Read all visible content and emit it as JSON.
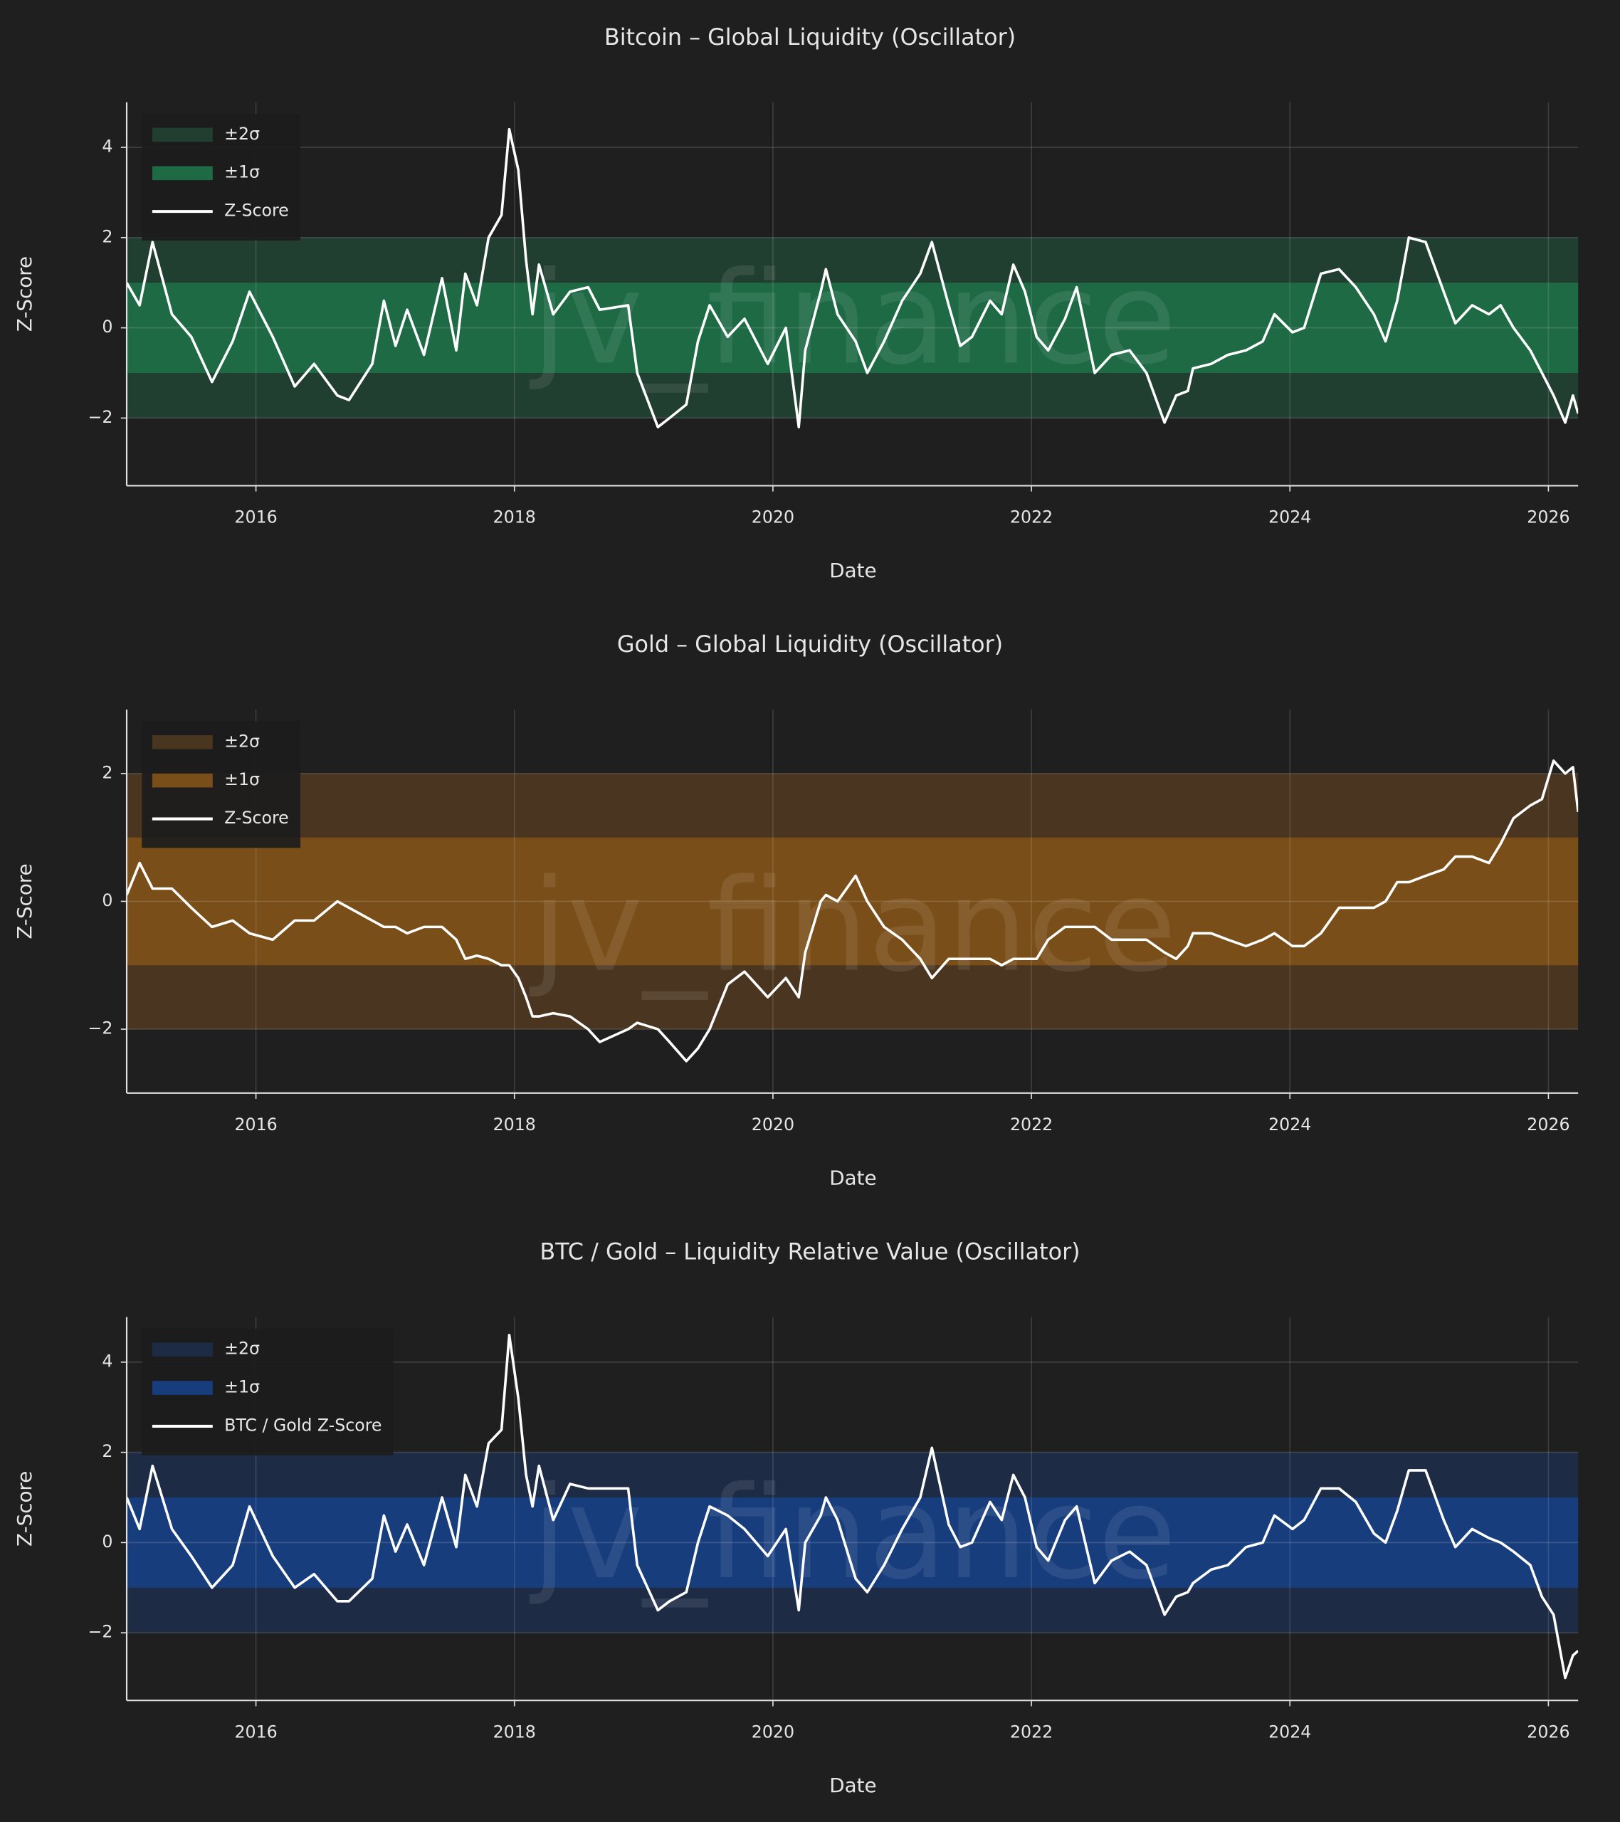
{
  "chart_data": [
    {
      "type": "line",
      "title": "Bitcoin – Global Liquidity (Oscillator)",
      "xlabel": "Date",
      "ylabel": "Z-Score",
      "watermark": "jv_finance",
      "x": [
        2015.0,
        2015.1,
        2015.2,
        2015.35,
        2015.5,
        2015.66,
        2015.82,
        2015.95,
        2016.13,
        2016.3,
        2016.45,
        2016.63,
        2016.72,
        2016.9,
        2016.99,
        2017.08,
        2017.17,
        2017.3,
        2017.44,
        2017.55,
        2017.62,
        2017.71,
        2017.8,
        2017.9,
        2017.96,
        2018.03,
        2018.09,
        2018.14,
        2018.19,
        2018.3,
        2018.43,
        2018.57,
        2018.66,
        2018.88,
        2018.95,
        2019.11,
        2019.2,
        2019.33,
        2019.42,
        2019.51,
        2019.65,
        2019.78,
        2019.96,
        2020.1,
        2020.2,
        2020.25,
        2020.37,
        2020.41,
        2020.5,
        2020.64,
        2020.73,
        2020.86,
        2021.0,
        2021.14,
        2021.23,
        2021.36,
        2021.45,
        2021.54,
        2021.68,
        2021.77,
        2021.86,
        2021.95,
        2022.04,
        2022.13,
        2022.26,
        2022.35,
        2022.49,
        2022.62,
        2022.76,
        2022.89,
        2023.03,
        2023.12,
        2023.21,
        2023.25,
        2023.39,
        2023.52,
        2023.66,
        2023.79,
        2023.88,
        2024.02,
        2024.11,
        2024.24,
        2024.38,
        2024.51,
        2024.65,
        2024.74,
        2024.83,
        2024.92,
        2025.05,
        2025.19,
        2025.28,
        2025.41,
        2025.54,
        2025.63,
        2025.73,
        2025.86,
        2025.95,
        2026.04,
        2026.13,
        2026.19,
        2026.23
      ],
      "xlim": [
        2015.0,
        2026.23
      ],
      "xticks": [
        2016,
        2018,
        2020,
        2022,
        2024,
        2026
      ],
      "ylim": [
        -3.5,
        5
      ],
      "yticks": [
        {
          "value": -2,
          "label": "−2"
        },
        0,
        2,
        4
      ],
      "bands": [
        {
          "name": "±2σ",
          "color": "#213f31",
          "range": [
            -2,
            2
          ]
        },
        {
          "name": "±1σ",
          "color": "#1d6a45",
          "range": [
            -1,
            1
          ]
        }
      ],
      "series": [
        {
          "name": "Z-Score",
          "color": "#ffffff",
          "values": [
            1.0,
            0.5,
            1.9,
            0.3,
            -0.2,
            -1.2,
            -0.3,
            0.8,
            -0.2,
            -1.3,
            -0.8,
            -1.5,
            -1.6,
            -0.8,
            0.6,
            -0.4,
            0.4,
            -0.6,
            1.1,
            -0.5,
            1.2,
            0.5,
            2.0,
            2.5,
            4.4,
            3.5,
            1.5,
            0.3,
            1.4,
            0.3,
            0.8,
            0.9,
            0.4,
            0.5,
            -1.0,
            -2.2,
            -2.0,
            -1.7,
            -0.3,
            0.5,
            -0.2,
            0.2,
            -0.8,
            0.0,
            -2.2,
            -0.5,
            0.8,
            1.3,
            0.3,
            -0.3,
            -1.0,
            -0.3,
            0.6,
            1.2,
            1.9,
            0.5,
            -0.4,
            -0.2,
            0.6,
            0.3,
            1.4,
            0.8,
            -0.2,
            -0.5,
            0.2,
            0.9,
            -1.0,
            -0.6,
            -0.5,
            -1.0,
            -2.1,
            -1.5,
            -1.4,
            -0.9,
            -0.8,
            -0.6,
            -0.5,
            -0.3,
            0.3,
            -0.1,
            0.0,
            1.2,
            1.3,
            0.9,
            0.3,
            -0.3,
            0.6,
            2.0,
            1.9,
            0.8,
            0.1,
            0.5,
            0.3,
            0.5,
            0.0,
            -0.5,
            -1.0,
            -1.5,
            -2.1,
            -1.5,
            -1.9
          ]
        }
      ],
      "grid": true,
      "legend": "upper left"
    },
    {
      "type": "line",
      "title": "Gold – Global Liquidity (Oscillator)",
      "xlabel": "Date",
      "ylabel": "Z-Score",
      "watermark": "jv_finance",
      "x": [
        2015.0,
        2015.1,
        2015.2,
        2015.35,
        2015.5,
        2015.66,
        2015.82,
        2015.95,
        2016.13,
        2016.3,
        2016.45,
        2016.63,
        2016.72,
        2016.9,
        2016.99,
        2017.08,
        2017.17,
        2017.3,
        2017.44,
        2017.55,
        2017.62,
        2017.71,
        2017.8,
        2017.9,
        2017.96,
        2018.03,
        2018.09,
        2018.14,
        2018.19,
        2018.3,
        2018.43,
        2018.57,
        2018.66,
        2018.88,
        2018.95,
        2019.11,
        2019.2,
        2019.33,
        2019.42,
        2019.51,
        2019.65,
        2019.78,
        2019.96,
        2020.1,
        2020.2,
        2020.25,
        2020.37,
        2020.41,
        2020.5,
        2020.64,
        2020.73,
        2020.86,
        2021.0,
        2021.14,
        2021.23,
        2021.36,
        2021.45,
        2021.54,
        2021.68,
        2021.77,
        2021.86,
        2021.95,
        2022.04,
        2022.13,
        2022.26,
        2022.35,
        2022.49,
        2022.62,
        2022.76,
        2022.89,
        2023.03,
        2023.12,
        2023.21,
        2023.25,
        2023.39,
        2023.52,
        2023.66,
        2023.79,
        2023.88,
        2024.02,
        2024.11,
        2024.24,
        2024.38,
        2024.51,
        2024.65,
        2024.74,
        2024.83,
        2024.92,
        2025.05,
        2025.19,
        2025.28,
        2025.41,
        2025.54,
        2025.63,
        2025.73,
        2025.86,
        2025.95,
        2026.04,
        2026.13,
        2026.19,
        2026.23
      ],
      "xlim": [
        2015.0,
        2026.23
      ],
      "xticks": [
        2016,
        2018,
        2020,
        2022,
        2024,
        2026
      ],
      "ylim": [
        -3,
        3
      ],
      "yticks": [
        {
          "value": -2,
          "label": "−2"
        },
        0,
        2
      ],
      "bands": [
        {
          "name": "±2σ",
          "color": "#4a3520",
          "range": [
            -2,
            2
          ]
        },
        {
          "name": "±1σ",
          "color": "#7a4e18",
          "range": [
            -1,
            1
          ]
        }
      ],
      "series": [
        {
          "name": "Z-Score",
          "color": "#ffffff",
          "values": [
            0.1,
            0.6,
            0.2,
            0.2,
            -0.1,
            -0.4,
            -0.3,
            -0.5,
            -0.6,
            -0.3,
            -0.3,
            0.0,
            -0.1,
            -0.3,
            -0.4,
            -0.4,
            -0.5,
            -0.4,
            -0.4,
            -0.6,
            -0.9,
            -0.85,
            -0.9,
            -1.0,
            -1.0,
            -1.2,
            -1.5,
            -1.8,
            -1.8,
            -1.75,
            -1.8,
            -2.0,
            -2.2,
            -2.0,
            -1.9,
            -2.0,
            -2.2,
            -2.5,
            -2.3,
            -2.0,
            -1.3,
            -1.1,
            -1.5,
            -1.2,
            -1.5,
            -0.8,
            0.0,
            0.1,
            0.0,
            0.4,
            0.0,
            -0.4,
            -0.6,
            -0.9,
            -1.2,
            -0.9,
            -0.9,
            -0.9,
            -0.9,
            -1.0,
            -0.9,
            -0.9,
            -0.9,
            -0.6,
            -0.4,
            -0.4,
            -0.4,
            -0.6,
            -0.6,
            -0.6,
            -0.8,
            -0.9,
            -0.7,
            -0.5,
            -0.5,
            -0.6,
            -0.7,
            -0.6,
            -0.5,
            -0.7,
            -0.7,
            -0.5,
            -0.1,
            -0.1,
            -0.1,
            0.0,
            0.3,
            0.3,
            0.4,
            0.5,
            0.7,
            0.7,
            0.6,
            0.9,
            1.3,
            1.5,
            1.6,
            2.2,
            2.0,
            2.1,
            1.4
          ]
        }
      ],
      "grid": true,
      "legend": "upper left"
    },
    {
      "type": "line",
      "title": "BTC / Gold – Liquidity Relative Value (Oscillator)",
      "xlabel": "Date",
      "ylabel": "Z-Score",
      "watermark": "jv_finance",
      "x": [
        2015.0,
        2015.1,
        2015.2,
        2015.35,
        2015.5,
        2015.66,
        2015.82,
        2015.95,
        2016.13,
        2016.3,
        2016.45,
        2016.63,
        2016.72,
        2016.9,
        2016.99,
        2017.08,
        2017.17,
        2017.3,
        2017.44,
        2017.55,
        2017.62,
        2017.71,
        2017.8,
        2017.9,
        2017.96,
        2018.03,
        2018.09,
        2018.14,
        2018.19,
        2018.3,
        2018.43,
        2018.57,
        2018.66,
        2018.88,
        2018.95,
        2019.11,
        2019.2,
        2019.33,
        2019.42,
        2019.51,
        2019.65,
        2019.78,
        2019.96,
        2020.1,
        2020.2,
        2020.25,
        2020.37,
        2020.41,
        2020.5,
        2020.64,
        2020.73,
        2020.86,
        2021.0,
        2021.14,
        2021.23,
        2021.36,
        2021.45,
        2021.54,
        2021.68,
        2021.77,
        2021.86,
        2021.95,
        2022.04,
        2022.13,
        2022.26,
        2022.35,
        2022.49,
        2022.62,
        2022.76,
        2022.89,
        2023.03,
        2023.12,
        2023.21,
        2023.25,
        2023.39,
        2023.52,
        2023.66,
        2023.79,
        2023.88,
        2024.02,
        2024.11,
        2024.24,
        2024.38,
        2024.51,
        2024.65,
        2024.74,
        2024.83,
        2024.92,
        2025.05,
        2025.19,
        2025.28,
        2025.41,
        2025.54,
        2025.63,
        2025.73,
        2025.86,
        2025.95,
        2026.04,
        2026.13,
        2026.19,
        2026.23
      ],
      "xlim": [
        2015.0,
        2026.23
      ],
      "xticks": [
        2016,
        2018,
        2020,
        2022,
        2024,
        2026
      ],
      "ylim": [
        -3.5,
        5
      ],
      "yticks": [
        {
          "value": -2,
          "label": "−2"
        },
        0,
        2,
        4
      ],
      "bands": [
        {
          "name": "±2σ",
          "color": "#1d2b45",
          "range": [
            -2,
            2
          ]
        },
        {
          "name": "±1σ",
          "color": "#173d7d",
          "range": [
            -1,
            1
          ]
        }
      ],
      "series": [
        {
          "name": "BTC / Gold Z-Score",
          "color": "#ffffff",
          "values": [
            1.0,
            0.3,
            1.7,
            0.3,
            -0.3,
            -1.0,
            -0.5,
            0.8,
            -0.3,
            -1.0,
            -0.7,
            -1.3,
            -1.3,
            -0.8,
            0.6,
            -0.2,
            0.4,
            -0.5,
            1.0,
            -0.1,
            1.5,
            0.8,
            2.2,
            2.5,
            4.6,
            3.2,
            1.5,
            0.8,
            1.7,
            0.5,
            1.3,
            1.2,
            1.2,
            1.2,
            -0.5,
            -1.5,
            -1.3,
            -1.1,
            0.0,
            0.8,
            0.6,
            0.3,
            -0.3,
            0.3,
            -1.5,
            0.0,
            0.6,
            1.0,
            0.5,
            -0.8,
            -1.1,
            -0.5,
            0.3,
            1.0,
            2.1,
            0.4,
            -0.1,
            0.0,
            0.9,
            0.5,
            1.5,
            1.0,
            -0.1,
            -0.4,
            0.5,
            0.8,
            -0.9,
            -0.4,
            -0.2,
            -0.5,
            -1.6,
            -1.2,
            -1.1,
            -0.9,
            -0.6,
            -0.5,
            -0.1,
            0.0,
            0.6,
            0.3,
            0.5,
            1.2,
            1.2,
            0.9,
            0.2,
            0.0,
            0.7,
            1.6,
            1.6,
            0.5,
            -0.1,
            0.3,
            0.1,
            0.0,
            -0.2,
            -0.5,
            -1.2,
            -1.6,
            -3.0,
            -2.5,
            -2.4
          ]
        }
      ],
      "grid": true,
      "legend": "upper left"
    }
  ]
}
